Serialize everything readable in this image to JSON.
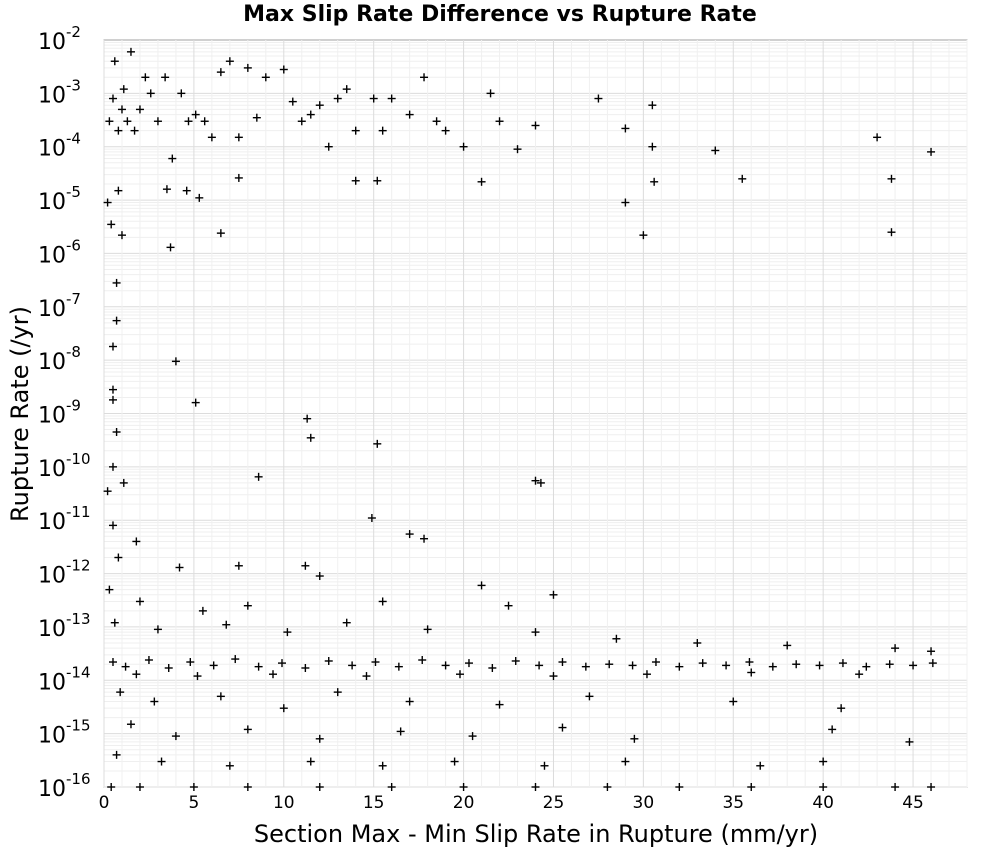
{
  "chart_data": {
    "type": "scatter",
    "title": "Max Slip Rate Difference vs Rupture Rate",
    "xlabel": "Section Max - Min Slip Rate in Rupture (mm/yr)",
    "ylabel": "Rupture Rate (/yr)",
    "xlim": [
      0,
      48
    ],
    "ylim": [
      1e-16,
      0.01
    ],
    "yscale": "log",
    "x_ticks": [
      "0",
      "5",
      "10",
      "15",
      "20",
      "25",
      "30",
      "35",
      "40",
      "45"
    ],
    "y_ticks": [
      {
        "base": "10",
        "exp": "-2"
      },
      {
        "base": "10",
        "exp": "-3"
      },
      {
        "base": "10",
        "exp": "-4"
      },
      {
        "base": "10",
        "exp": "-5"
      },
      {
        "base": "10",
        "exp": "-6"
      },
      {
        "base": "10",
        "exp": "-7"
      },
      {
        "base": "10",
        "exp": "-8"
      },
      {
        "base": "10",
        "exp": "-9"
      },
      {
        "base": "10",
        "exp": "-10"
      },
      {
        "base": "10",
        "exp": "-11"
      },
      {
        "base": "10",
        "exp": "-12"
      },
      {
        "base": "10",
        "exp": "-13"
      },
      {
        "base": "10",
        "exp": "-14"
      },
      {
        "base": "10",
        "exp": "-15"
      },
      {
        "base": "10",
        "exp": "-16"
      }
    ],
    "grid": true,
    "marker": "+",
    "marker_color": "#000000",
    "series": [
      {
        "points": [
          [
            0.3,
            0.0003
          ],
          [
            0.5,
            0.0008
          ],
          [
            0.6,
            0.004
          ],
          [
            0.8,
            0.0002
          ],
          [
            1.0,
            0.0005
          ],
          [
            1.1,
            0.0012
          ],
          [
            1.3,
            0.0003
          ],
          [
            1.5,
            0.006
          ],
          [
            1.7,
            0.0002
          ],
          [
            2.0,
            0.0005
          ],
          [
            2.3,
            0.002
          ],
          [
            2.6,
            0.001
          ],
          [
            3.0,
            0.0003
          ],
          [
            3.4,
            0.002
          ],
          [
            3.8,
            6e-05
          ],
          [
            4.3,
            0.001
          ],
          [
            4.7,
            0.0003
          ],
          [
            5.1,
            0.0004
          ],
          [
            5.6,
            0.0003
          ],
          [
            6.0,
            0.00015
          ],
          [
            6.5,
            0.0025
          ],
          [
            7.0,
            0.004
          ],
          [
            7.5,
            0.00015
          ],
          [
            8.0,
            0.003
          ],
          [
            8.5,
            0.00035
          ],
          [
            9.0,
            0.002
          ],
          [
            10.0,
            0.0028
          ],
          [
            10.5,
            0.0007
          ],
          [
            11.0,
            0.0003
          ],
          [
            11.5,
            0.0004
          ],
          [
            12.0,
            0.0006
          ],
          [
            12.5,
            0.0001
          ],
          [
            13.0,
            0.0008
          ],
          [
            13.5,
            0.0012
          ],
          [
            14.0,
            0.0002
          ],
          [
            15.0,
            0.0008
          ],
          [
            15.5,
            0.0002
          ],
          [
            16.0,
            0.0008
          ],
          [
            17.0,
            0.0004
          ],
          [
            17.8,
            0.002
          ],
          [
            18.5,
            0.0003
          ],
          [
            19.0,
            0.0002
          ],
          [
            20.0,
            0.0001
          ],
          [
            21.0,
            2.2e-05
          ],
          [
            21.5,
            0.001
          ],
          [
            22.0,
            0.0003
          ],
          [
            23.0,
            9e-05
          ],
          [
            24.0,
            0.00025
          ],
          [
            27.5,
            0.0008
          ],
          [
            29.0,
            0.00022
          ],
          [
            30.5,
            0.0006
          ],
          [
            30.5,
            0.0001
          ],
          [
            30.6,
            2.2e-05
          ],
          [
            34.0,
            8.5e-05
          ],
          [
            35.5,
            2.5e-05
          ],
          [
            43.0,
            0.00015
          ],
          [
            43.8,
            2.5e-05
          ],
          [
            46.0,
            8e-05
          ],
          [
            3.5,
            1.6e-05
          ],
          [
            4.6,
            1.5e-05
          ],
          [
            5.3,
            1.1e-05
          ],
          [
            7.5,
            2.6e-05
          ],
          [
            14.0,
            2.3e-05
          ],
          [
            15.2,
            2.3e-05
          ],
          [
            0.2,
            9e-06
          ],
          [
            0.8,
            1.5e-05
          ],
          [
            29.0,
            9e-06
          ],
          [
            0.4,
            3.5e-06
          ],
          [
            1.0,
            2.2e-06
          ],
          [
            6.5,
            2.4e-06
          ],
          [
            3.7,
            1.3e-06
          ],
          [
            30.0,
            2.2e-06
          ],
          [
            43.8,
            2.5e-06
          ],
          [
            0.7,
            2.8e-07
          ],
          [
            0.7,
            5.5e-08
          ],
          [
            0.5,
            1.8e-08
          ],
          [
            4.0,
            9.5e-09
          ],
          [
            0.5,
            2.8e-09
          ],
          [
            0.5,
            1.8e-09
          ],
          [
            5.1,
            1.6e-09
          ],
          [
            11.3,
            8e-10
          ],
          [
            11.5,
            3.5e-10
          ],
          [
            0.7,
            4.5e-10
          ],
          [
            15.2,
            2.7e-10
          ],
          [
            0.5,
            1e-10
          ],
          [
            8.6,
            6.5e-11
          ],
          [
            24.0,
            5.5e-11
          ],
          [
            24.3,
            5e-11
          ],
          [
            1.1,
            5e-11
          ],
          [
            0.2,
            3.5e-11
          ],
          [
            14.9,
            1.1e-11
          ],
          [
            17.0,
            5.5e-12
          ],
          [
            17.8,
            4.5e-12
          ],
          [
            0.5,
            8e-12
          ],
          [
            1.8,
            4e-12
          ],
          [
            0.8,
            2e-12
          ],
          [
            4.2,
            1.3e-12
          ],
          [
            7.5,
            1.4e-12
          ],
          [
            11.2,
            1.4e-12
          ],
          [
            12.0,
            9e-13
          ],
          [
            21.0,
            6e-13
          ],
          [
            25.0,
            4e-13
          ],
          [
            0.3,
            5e-13
          ],
          [
            2.0,
            3e-13
          ],
          [
            5.5,
            2e-13
          ],
          [
            8.0,
            2.5e-13
          ],
          [
            15.5,
            3e-13
          ],
          [
            22.5,
            2.5e-13
          ],
          [
            0.6,
            1.2e-13
          ],
          [
            3.0,
            9e-14
          ],
          [
            6.8,
            1.1e-13
          ],
          [
            10.2,
            8e-14
          ],
          [
            13.5,
            1.2e-13
          ],
          [
            18.0,
            9e-14
          ],
          [
            24.0,
            8e-14
          ],
          [
            28.5,
            6e-14
          ],
          [
            33.0,
            5e-14
          ],
          [
            38.0,
            4.5e-14
          ],
          [
            44.0,
            4e-14
          ],
          [
            46.0,
            3.5e-14
          ],
          [
            0.5,
            2.2e-14
          ],
          [
            1.2,
            1.8e-14
          ],
          [
            2.5,
            2.4e-14
          ],
          [
            3.6,
            1.7e-14
          ],
          [
            4.8,
            2.2e-14
          ],
          [
            6.1,
            1.9e-14
          ],
          [
            7.3,
            2.5e-14
          ],
          [
            8.6,
            1.8e-14
          ],
          [
            9.9,
            2.1e-14
          ],
          [
            11.2,
            1.7e-14
          ],
          [
            12.5,
            2.3e-14
          ],
          [
            13.8,
            1.9e-14
          ],
          [
            15.1,
            2.2e-14
          ],
          [
            16.4,
            1.8e-14
          ],
          [
            17.7,
            2.4e-14
          ],
          [
            19.0,
            1.9e-14
          ],
          [
            20.3,
            2.1e-14
          ],
          [
            21.6,
            1.7e-14
          ],
          [
            22.9,
            2.3e-14
          ],
          [
            24.2,
            1.9e-14
          ],
          [
            25.5,
            2.2e-14
          ],
          [
            26.8,
            1.8e-14
          ],
          [
            28.1,
            2e-14
          ],
          [
            29.4,
            1.9e-14
          ],
          [
            30.7,
            2.2e-14
          ],
          [
            32.0,
            1.8e-14
          ],
          [
            33.3,
            2.1e-14
          ],
          [
            34.6,
            1.9e-14
          ],
          [
            35.9,
            2.2e-14
          ],
          [
            37.2,
            1.8e-14
          ],
          [
            38.5,
            2e-14
          ],
          [
            39.8,
            1.9e-14
          ],
          [
            41.1,
            2.1e-14
          ],
          [
            42.4,
            1.8e-14
          ],
          [
            43.7,
            2e-14
          ],
          [
            45.0,
            1.9e-14
          ],
          [
            46.1,
            2.1e-14
          ],
          [
            1.8,
            1.3e-14
          ],
          [
            5.2,
            1.2e-14
          ],
          [
            9.4,
            1.3e-14
          ],
          [
            14.6,
            1.2e-14
          ],
          [
            19.8,
            1.3e-14
          ],
          [
            25.0,
            1.2e-14
          ],
          [
            30.2,
            1.3e-14
          ],
          [
            36.0,
            1.4e-14
          ],
          [
            42.0,
            1.3e-14
          ],
          [
            0.9,
            6e-15
          ],
          [
            2.8,
            4e-15
          ],
          [
            6.5,
            5e-15
          ],
          [
            10.0,
            3e-15
          ],
          [
            13.0,
            6e-15
          ],
          [
            17.0,
            4e-15
          ],
          [
            22.0,
            3.5e-15
          ],
          [
            27.0,
            5e-15
          ],
          [
            35.0,
            4e-15
          ],
          [
            41.0,
            3e-15
          ],
          [
            1.5,
            1.5e-15
          ],
          [
            4.0,
            9e-16
          ],
          [
            8.0,
            1.2e-15
          ],
          [
            12.0,
            8e-16
          ],
          [
            16.5,
            1.1e-15
          ],
          [
            20.5,
            9e-16
          ],
          [
            25.5,
            1.3e-15
          ],
          [
            29.5,
            8e-16
          ],
          [
            40.5,
            1.2e-15
          ],
          [
            44.8,
            7e-16
          ],
          [
            0.7,
            4e-16
          ],
          [
            3.2,
            3e-16
          ],
          [
            7.0,
            2.5e-16
          ],
          [
            11.5,
            3e-16
          ],
          [
            15.5,
            2.5e-16
          ],
          [
            19.5,
            3e-16
          ],
          [
            24.5,
            2.5e-16
          ],
          [
            29.0,
            3e-16
          ],
          [
            36.5,
            2.5e-16
          ],
          [
            40.0,
            3e-16
          ],
          [
            0.4,
            1e-16
          ],
          [
            2.0,
            1e-16
          ],
          [
            5.0,
            1e-16
          ],
          [
            8.0,
            1e-16
          ],
          [
            12.0,
            1e-16
          ],
          [
            16.0,
            1e-16
          ],
          [
            20.0,
            1e-16
          ],
          [
            24.0,
            1e-16
          ],
          [
            28.0,
            1e-16
          ],
          [
            32.0,
            1e-16
          ],
          [
            36.0,
            1e-16
          ],
          [
            40.0,
            1e-16
          ],
          [
            44.0,
            1e-16
          ],
          [
            46.0,
            1e-16
          ]
        ]
      }
    ]
  }
}
